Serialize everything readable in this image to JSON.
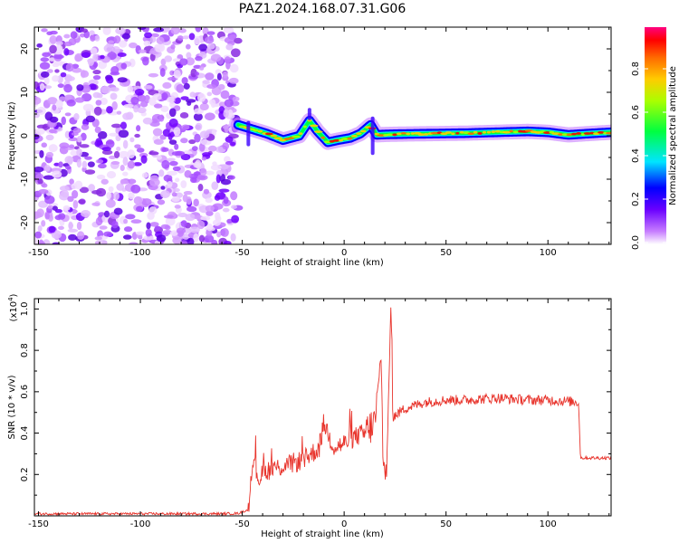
{
  "figure": {
    "title": "PAZ1.2024.168.07.31.G06"
  },
  "chart_data": [
    {
      "type": "heatmap",
      "xlabel": "Height of straight line (km)",
      "ylabel": "Frequency (Hz)",
      "xlim": [
        -152,
        131
      ],
      "ylim": [
        -25,
        25
      ],
      "x_ticks": [
        -150,
        -100,
        -50,
        0,
        50,
        100
      ],
      "y_ticks": [
        -20,
        -10,
        0,
        10,
        20
      ],
      "colorbar": {
        "label": "Normalized spectral amplitude",
        "range": [
          0,
          1
        ],
        "ticks": [
          "0.0",
          "0.2",
          "0.4",
          "0.6",
          "0.8"
        ],
        "colormap": "gist_rainbow_r"
      },
      "noise_region_x": [
        -152,
        -52
      ],
      "frequency_track": {
        "x": [
          -52,
          -45,
          -38,
          -30,
          -22,
          -17,
          -13,
          -8,
          -3,
          3,
          8,
          13,
          16,
          20,
          30,
          45,
          60,
          75,
          90,
          100,
          110,
          120,
          131
        ],
        "y": [
          2.5,
          1.5,
          0.5,
          -1.0,
          0.0,
          3.5,
          1.0,
          -1.5,
          -1.0,
          -0.5,
          0.5,
          2.5,
          0.2,
          0.3,
          0.4,
          0.5,
          0.6,
          0.8,
          1.0,
          0.8,
          0.2,
          0.5,
          0.8
        ]
      }
    },
    {
      "type": "line",
      "xlabel": "Height of straight line (km)",
      "ylabel": "SNR (10 * v/v)",
      "y_multiplier_label": "(x10",
      "y_multiplier_exp": "4",
      "y_multiplier_close": ")",
      "xlim": [
        -152,
        131
      ],
      "ylim": [
        0.0,
        1.05
      ],
      "x_ticks": [
        -150,
        -100,
        -50,
        0,
        50,
        100
      ],
      "y_ticks": [
        "0.2",
        "0.4",
        "0.6",
        "0.8",
        "1.0"
      ],
      "series": [
        {
          "color": "#e8342c",
          "x": [
            -152,
            -60,
            -52,
            -47,
            -45,
            -42,
            -38,
            -30,
            -20,
            -12,
            -10,
            -5,
            0,
            5,
            10,
            15,
            18,
            19,
            21,
            23,
            24,
            30,
            40,
            50,
            60,
            75,
            90,
            100,
            115,
            116,
            120,
            131
          ],
          "y": [
            0.01,
            0.01,
            0.012,
            0.03,
            0.28,
            0.18,
            0.22,
            0.24,
            0.27,
            0.33,
            0.45,
            0.33,
            0.35,
            0.38,
            0.4,
            0.45,
            0.7,
            0.35,
            0.2,
            1.05,
            0.48,
            0.52,
            0.55,
            0.56,
            0.56,
            0.57,
            0.56,
            0.56,
            0.55,
            0.28,
            0.28,
            0.28
          ]
        }
      ]
    }
  ]
}
